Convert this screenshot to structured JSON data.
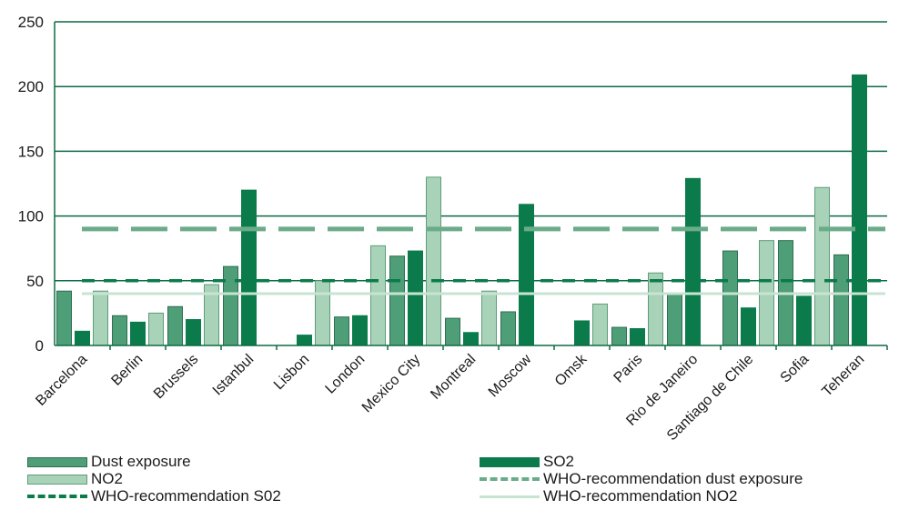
{
  "chart_data": {
    "type": "bar",
    "categories": [
      "Barcelona",
      "Berlin",
      "Brussels",
      "Istanbul",
      "Lisbon",
      "London",
      "Mexico City",
      "Montreal",
      "Moscow",
      "Omsk",
      "Paris",
      "Rio de Janeiro",
      "Santiago de Chile",
      "Sofia",
      "Teheran"
    ],
    "series": [
      {
        "name": "Dust exposure",
        "color": "#4e9e78",
        "values": [
          42,
          23,
          30,
          61,
          0,
          22,
          69,
          21,
          26,
          0,
          14,
          40,
          73,
          81,
          70
        ]
      },
      {
        "name": "SO2",
        "color": "#0b7b4b",
        "values": [
          11,
          18,
          20,
          120,
          8,
          23,
          73,
          10,
          109,
          19,
          13,
          129,
          29,
          38,
          209
        ]
      },
      {
        "name": "NO2",
        "color": "#a8d3b8",
        "values": [
          42,
          25,
          47,
          0,
          50,
          77,
          130,
          42,
          0,
          32,
          56,
          0,
          81,
          122,
          0
        ]
      }
    ],
    "reference_lines": [
      {
        "name": "WHO-recommendation dust exposure",
        "value": 90,
        "style": "long-dash",
        "color": "#6aac8a"
      },
      {
        "name": "WHO-recommendation S02",
        "value": 50,
        "style": "dash",
        "color": "#0b7b4b"
      },
      {
        "name": "WHO-recommendation NO2",
        "value": 40,
        "style": "solid",
        "color": "#c8e3d2"
      }
    ],
    "yticks": [
      "0",
      "50",
      "100",
      "150",
      "200",
      "250"
    ],
    "ylim": [
      0,
      250
    ],
    "grid": true,
    "legend_position": "bottom"
  },
  "legend": [
    {
      "label": "Dust exposure",
      "kind": "box",
      "color": "#4e9e78"
    },
    {
      "label": "SO2",
      "kind": "box",
      "color": "#0b7b4b"
    },
    {
      "label": "NO2",
      "kind": "box",
      "color": "#a8d3b8"
    },
    {
      "label": "WHO-recommendation dust exposure",
      "kind": "long-dash",
      "color": "#6aac8a"
    },
    {
      "label": "WHO-recommendation S02",
      "kind": "dash",
      "color": "#0b7b4b"
    },
    {
      "label": "WHO-recommendation NO2",
      "kind": "solid",
      "color": "#c8e3d2"
    }
  ]
}
